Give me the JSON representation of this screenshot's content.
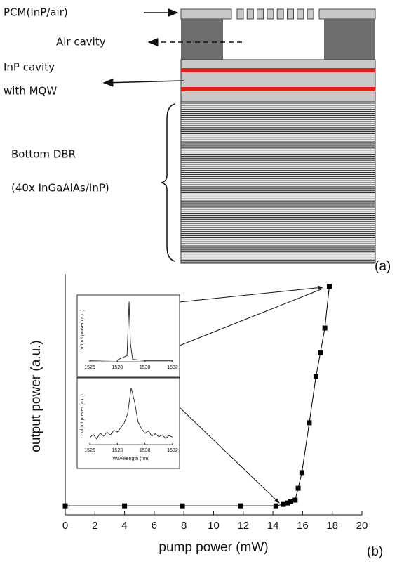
{
  "diagram": {
    "pcm_label": "PCM(InP/air)",
    "air_label": "Air cavity",
    "cavity_label_1": "InP cavity",
    "cavity_label_2": "with MQW",
    "dbr_label_1": "Bottom DBR",
    "dbr_label_2": "(40x InGaAlAs/InP)",
    "panel_label": "(a)"
  },
  "chart_data": [
    {
      "type": "line",
      "markers": true,
      "color": "#000000",
      "xlabel": "pump power (mW)",
      "ylabel": "output power (a.u.)",
      "panel_label": "(b)",
      "x": [
        0,
        4,
        7.9,
        11.8,
        14.2,
        14.7,
        15,
        15.2,
        15.5,
        15.7,
        15.95,
        16.45,
        16.9,
        17.2,
        17.5,
        17.8
      ],
      "values": [
        0.38,
        0.38,
        0.38,
        0.38,
        0.38,
        0.44,
        0.5,
        0.56,
        0.62,
        1.12,
        1.78,
        3.88,
        5.83,
        6.83,
        7.87,
        9.62
      ],
      "xlim": [
        0,
        20
      ],
      "xticks": [
        0,
        2,
        4,
        6,
        8,
        10,
        12,
        14,
        16,
        18,
        20
      ],
      "ylim": [
        0,
        10
      ]
    },
    {
      "type": "line",
      "markers": false,
      "color": "#222222",
      "ylabel": "output power (a.u.)",
      "x": [
        1526,
        1528,
        1528.7,
        1528.85,
        1528.95,
        1529.1,
        1530,
        1532
      ],
      "values": [
        0.02,
        0.03,
        0.1,
        1.0,
        0.3,
        0.04,
        0.02,
        0.02
      ],
      "xlim": [
        1526,
        1532
      ],
      "xticks": [
        1526,
        1528,
        1530,
        1532
      ],
      "ylim": [
        0,
        1.05
      ]
    },
    {
      "type": "line",
      "markers": false,
      "color": "#222222",
      "ylabel": "output power (a.u.)",
      "xlabel": "Wavelength (nm)",
      "x": [
        1526,
        1526.25,
        1526.5,
        1526.75,
        1527,
        1527.25,
        1527.5,
        1527.75,
        1528,
        1528.25,
        1528.5,
        1528.75,
        1529,
        1529.25,
        1529.5,
        1529.75,
        1530,
        1530.25,
        1530.5,
        1530.75,
        1531,
        1531.25,
        1531.5,
        1531.75,
        1532
      ],
      "values": [
        0.12,
        0.18,
        0.1,
        0.2,
        0.15,
        0.22,
        0.17,
        0.25,
        0.22,
        0.3,
        0.38,
        0.55,
        1.0,
        0.75,
        0.4,
        0.28,
        0.2,
        0.24,
        0.15,
        0.19,
        0.14,
        0.17,
        0.11,
        0.16,
        0.13
      ],
      "xlim": [
        1526,
        1532
      ],
      "xticks": [
        1526,
        1528,
        1530,
        1532
      ],
      "ylim": [
        0,
        1.05
      ]
    }
  ]
}
